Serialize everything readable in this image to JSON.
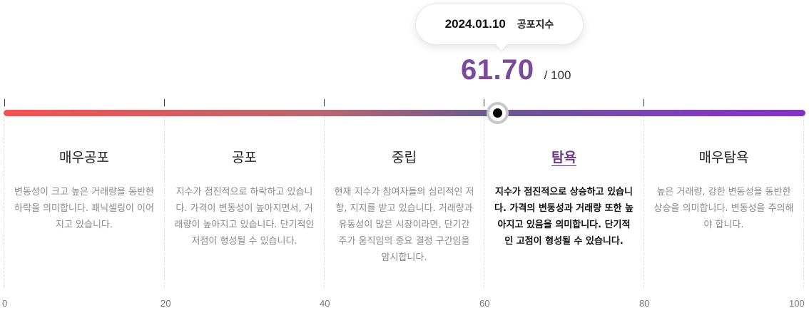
{
  "tooltip": {
    "date": "2024.01.10",
    "label": "공포지수"
  },
  "score": {
    "value": "61.70",
    "max": "/ 100"
  },
  "gauge": {
    "value": 61.7,
    "min": 0,
    "max": 100
  },
  "categories": [
    {
      "title": "매우공포",
      "desc": "변동성이 크고 높은 거래량을 동반한 하락을 의미합니다. 패닉셀링이 이어지고 있습니다.",
      "active": false
    },
    {
      "title": "공포",
      "desc": "지수가 점진적으로 하락하고 있습니다. 가격이 변동성이 높아지면서, 거래량이 높아지고 있습니다. 단기적인 저점이 형성될 수 있습니다.",
      "active": false
    },
    {
      "title": "중립",
      "desc": "현재 지수가 참여자들의 심리적인 저항, 지지를 받고 있습니다. 거래량과 유동성이 많은 시장이라면, 단기간 주가 움직임의 중요 결정 구간임을 암시합니다.",
      "active": false
    },
    {
      "title": "탐욕",
      "desc": "지수가 점진적으로 상승하고 있습니다. 가격의 변동성과 거래량 또한 높아지고 있음을 의미합니다. 단기적인 고점이 형성될 수 있습니다.",
      "active": true
    },
    {
      "title": "매우탐욕",
      "desc": "높은 거래량, 강한 변동성을 동반한 상승을 의미합니다. 변동성을 주의해야 합니다.",
      "active": false
    }
  ],
  "axis": [
    "0",
    "20",
    "40",
    "60",
    "80",
    "100"
  ],
  "colors": {
    "accent": "#7b4a9a",
    "bar_start": "#f25454",
    "bar_end": "#8034c4"
  }
}
